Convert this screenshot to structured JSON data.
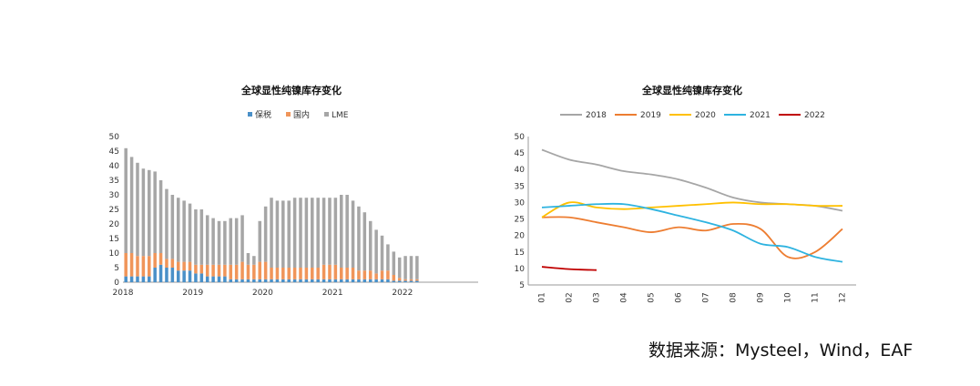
{
  "source_note": "数据来源：Mysteel，Wind，EAF",
  "chart_data": [
    {
      "type": "bar",
      "stacked": true,
      "title": "全球显性纯镍库存变化",
      "legend_position": "top-center",
      "ylim": [
        0,
        50
      ],
      "yticks": [
        "0",
        "5",
        "10",
        "15",
        "20",
        "25",
        "30",
        "35",
        "40",
        "45",
        "50"
      ],
      "xtick_labels": [
        "2018",
        "2019",
        "2020",
        "2021",
        "2022"
      ],
      "series": [
        {
          "name": "保税",
          "color": "#4a90c8",
          "values": [
            2,
            2,
            2,
            2,
            2,
            5,
            6,
            5,
            5,
            4,
            4,
            4,
            3,
            3,
            2,
            2,
            2,
            2,
            1,
            1,
            1,
            1,
            1,
            1,
            1,
            1,
            1,
            1,
            1,
            1,
            1,
            1,
            1,
            1,
            1,
            1,
            1,
            1,
            1,
            1,
            1,
            1,
            1,
            1,
            1,
            1,
            0.5,
            0.5,
            0.5,
            0.5,
            0.5
          ]
        },
        {
          "name": "国内",
          "color": "#f0955a",
          "values": [
            8,
            8,
            7,
            7,
            7,
            5,
            4,
            3,
            3,
            3,
            3,
            3,
            3,
            3,
            4,
            4,
            4,
            4,
            5,
            5,
            6,
            5,
            5,
            6,
            6,
            4,
            4,
            4,
            4,
            4,
            4,
            4,
            4,
            4,
            5,
            5,
            5,
            4,
            4,
            4,
            3,
            3,
            3,
            2,
            3,
            3,
            2,
            1,
            0.5,
            0.5,
            0.5
          ]
        },
        {
          "name": "LME",
          "color": "#a6a6a6",
          "values": [
            36,
            33,
            32,
            30,
            29.5,
            28,
            25,
            24,
            22,
            22,
            21,
            20,
            19,
            19,
            17,
            16,
            15,
            15,
            16,
            16,
            16,
            4,
            3,
            14,
            19,
            24,
            23,
            23,
            23,
            24,
            24,
            24,
            24,
            24,
            23,
            23,
            23,
            25,
            25,
            23,
            22,
            20,
            17,
            15,
            12,
            9,
            8,
            7,
            8,
            8,
            8
          ]
        }
      ]
    },
    {
      "type": "line",
      "title": "全球显性纯镍库存变化",
      "legend_position": "top",
      "ylim": [
        5,
        50
      ],
      "yticks": [
        "5",
        "10",
        "15",
        "20",
        "25",
        "30",
        "35",
        "40",
        "45",
        "50"
      ],
      "x": [
        "01",
        "02",
        "03",
        "04",
        "05",
        "06",
        "07",
        "08",
        "09",
        "10",
        "11",
        "12"
      ],
      "series": [
        {
          "name": "2018",
          "color": "#a6a6a6",
          "values": [
            46,
            43,
            41.5,
            39.5,
            38.5,
            37,
            34.5,
            31.5,
            30,
            29.5,
            29,
            27.5
          ]
        },
        {
          "name": "2019",
          "color": "#ed7d31",
          "values": [
            25.5,
            25.5,
            24,
            22.5,
            21,
            22.5,
            21.5,
            23.5,
            22,
            13.5,
            15,
            22
          ]
        },
        {
          "name": "2020",
          "color": "#ffc000",
          "values": [
            25.5,
            30,
            28.5,
            28,
            28.5,
            29,
            29.5,
            30,
            29.5,
            29.5,
            29,
            29
          ]
        },
        {
          "name": "2021",
          "color": "#2eb3e0",
          "values": [
            28.5,
            29,
            29.5,
            29.5,
            28,
            26,
            24,
            21.5,
            17.5,
            16.5,
            13.5,
            12
          ]
        },
        {
          "name": "2022",
          "color": "#c00000",
          "values": [
            10.5,
            9.8,
            9.5,
            null,
            null,
            null,
            null,
            null,
            null,
            null,
            null,
            null
          ]
        }
      ]
    }
  ]
}
